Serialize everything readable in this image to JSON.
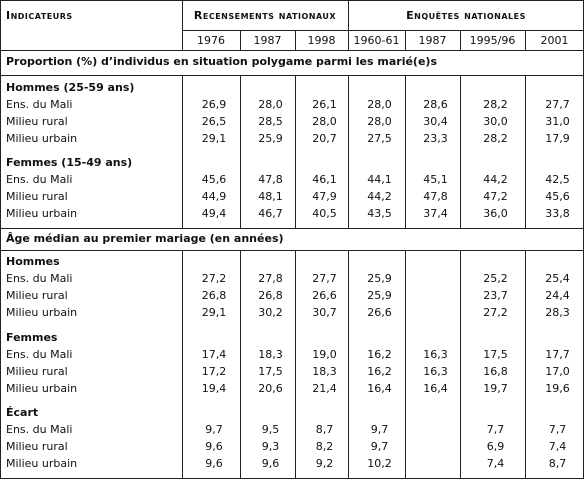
{
  "header": {
    "indicateurs": "Indicateurs",
    "recensements": "Recensements nationaux",
    "enquetes": "Enquêtes nationales",
    "years": [
      "1976",
      "1987",
      "1998",
      "1960-61",
      "1987",
      "1995/96",
      "2001"
    ]
  },
  "sections": [
    {
      "title": "Proportion (%) d’individus en situation polygame parmi les marié(e)s",
      "groups": [
        {
          "title": "Hommes (25-59 ans)",
          "rows": [
            {
              "label": "Ens. du Mali",
              "values": [
                "26,9",
                "28,0",
                "26,1",
                "28,0",
                "28,6",
                "28,2",
                "27,7"
              ]
            },
            {
              "label": "Milieu rural",
              "values": [
                "26,5",
                "28,5",
                "28,0",
                "28,0",
                "30,4",
                "30,0",
                "31,0"
              ]
            },
            {
              "label": "Milieu urbain",
              "values": [
                "29,1",
                "25,9",
                "20,7",
                "27,5",
                "23,3",
                "28,2",
                "17,9"
              ]
            }
          ]
        },
        {
          "title": "Femmes (15-49 ans)",
          "rows": [
            {
              "label": "Ens. du Mali",
              "values": [
                "45,6",
                "47,8",
                "46,1",
                "44,1",
                "45,1",
                "44,2",
                "42,5"
              ]
            },
            {
              "label": "Milieu rural",
              "values": [
                "44,9",
                "48,1",
                "47,9",
                "44,2",
                "47,8",
                "47,2",
                "45,6"
              ]
            },
            {
              "label": "Milieu urbain",
              "values": [
                "49,4",
                "46,7",
                "40,5",
                "43,5",
                "37,4",
                "36,0",
                "33,8"
              ]
            }
          ]
        }
      ]
    },
    {
      "title": "Âge médian au premier mariage (en années)",
      "groups": [
        {
          "title": "Hommes",
          "rows": [
            {
              "label": "Ens. du Mali",
              "values": [
                "27,2",
                "27,8",
                "27,7",
                "25,9",
                null,
                "25,2",
                "25,4"
              ]
            },
            {
              "label": "Milieu rural",
              "values": [
                "26,8",
                "26,8",
                "26,6",
                "25,9",
                null,
                "23,7",
                "24,4"
              ]
            },
            {
              "label": "Milieu urbain",
              "values": [
                "29,1",
                "30,2",
                "30,7",
                "26,6",
                null,
                "27,2",
                "28,3"
              ]
            }
          ]
        },
        {
          "title": "Femmes",
          "rows": [
            {
              "label": "Ens. du Mali",
              "values": [
                "17,4",
                "18,3",
                "19,0",
                "16,2",
                "16,3",
                "17,5",
                "17,7"
              ]
            },
            {
              "label": "Milieu rural",
              "values": [
                "17,2",
                "17,5",
                "18,3",
                "16,2",
                "16,3",
                "16,8",
                "17,0"
              ]
            },
            {
              "label": "Milieu urbain",
              "values": [
                "19,4",
                "20,6",
                "21,4",
                "16,4",
                "16,4",
                "19,7",
                "19,6"
              ]
            }
          ]
        },
        {
          "title": "Écart",
          "rows": [
            {
              "label": "Ens. du Mali",
              "values": [
                "9,7",
                "9,5",
                "8,7",
                "9,7",
                null,
                "7,7",
                "7,7"
              ]
            },
            {
              "label": "Milieu rural",
              "values": [
                "9,6",
                "9,3",
                "8,2",
                "9,7",
                null,
                "6,9",
                "7,4"
              ]
            },
            {
              "label": "Milieu urbain",
              "values": [
                "9,6",
                "9,6",
                "9,2",
                "10,2",
                null,
                "7,4",
                "8,7"
              ]
            }
          ]
        }
      ]
    }
  ]
}
